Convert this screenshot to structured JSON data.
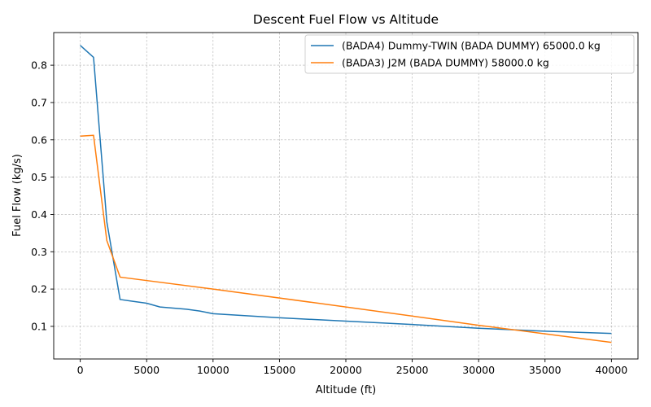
{
  "chart_data": {
    "type": "line",
    "title": "Descent Fuel Flow vs Altitude",
    "xlabel": "Altitude (ft)",
    "ylabel": "Fuel Flow (kg/s)",
    "xlim": [
      -2000,
      42000
    ],
    "ylim": [
      0.0126,
      0.8875
    ],
    "xticks": [
      0,
      5000,
      10000,
      15000,
      20000,
      25000,
      30000,
      35000,
      40000
    ],
    "xtick_labels": [
      "0",
      "5000",
      "10000",
      "15000",
      "20000",
      "25000",
      "30000",
      "35000",
      "40000"
    ],
    "yticks": [
      0.1,
      0.2,
      0.3,
      0.4,
      0.5,
      0.6,
      0.7,
      0.8
    ],
    "ytick_labels": [
      "0.1",
      "0.2",
      "0.3",
      "0.4",
      "0.5",
      "0.6",
      "0.7",
      "0.8"
    ],
    "grid": true,
    "legend_position": "top-right",
    "series": [
      {
        "name": "(BADA4) Dummy-TWIN (BADA DUMMY) 65000.0 kg",
        "color": "#1f77b4",
        "x": [
          0,
          1000,
          2000,
          3000,
          4000,
          5000,
          6000,
          7000,
          8000,
          9000,
          10000,
          15000,
          20000,
          25000,
          30000,
          35000,
          40000
        ],
        "y": [
          0.853,
          0.821,
          0.38,
          0.172,
          0.167,
          0.162,
          0.152,
          0.149,
          0.146,
          0.141,
          0.134,
          0.123,
          0.114,
          0.105,
          0.095,
          0.087,
          0.081
        ]
      },
      {
        "name": "(BADA3) J2M (BADA DUMMY) 58000.0 kg",
        "color": "#ff7f0e",
        "x": [
          0,
          1000,
          2000,
          3000,
          10000,
          20000,
          30000,
          35000,
          40000
        ],
        "y": [
          0.61,
          0.612,
          0.33,
          0.232,
          0.2,
          0.152,
          0.103,
          0.08,
          0.057
        ]
      }
    ]
  }
}
